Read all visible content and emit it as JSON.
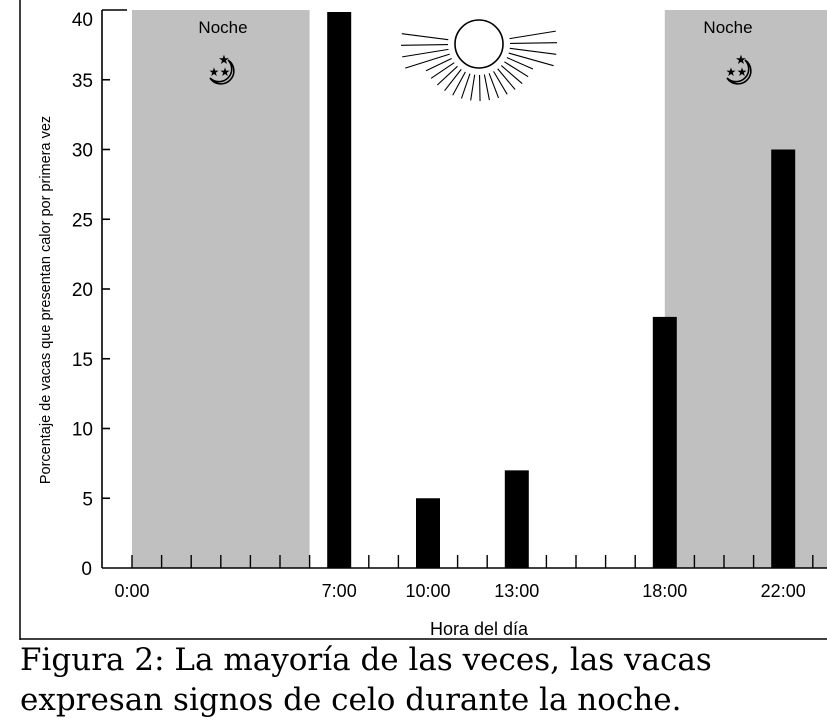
{
  "chart_data": {
    "type": "bar",
    "x": [
      7,
      10,
      13,
      18,
      22
    ],
    "values": [
      40,
      5,
      7,
      18,
      30
    ],
    "xlabel": "Hora del día",
    "ylabel": "Porcentaje de vacas que presentan calor por primera vez",
    "xlim": [
      0,
      24
    ],
    "ylim": [
      0,
      40
    ],
    "yticks": [
      0,
      5,
      10,
      15,
      20,
      25,
      30,
      35,
      40
    ],
    "xtick_labels": [
      {
        "x": 0,
        "label": "0:00"
      },
      {
        "x": 7,
        "label": "7:00"
      },
      {
        "x": 10,
        "label": "10:00"
      },
      {
        "x": 13,
        "label": "13:00"
      },
      {
        "x": 18,
        "label": "18:00"
      },
      {
        "x": 22,
        "label": "22:00"
      }
    ],
    "minor_tick_step_hours": 1,
    "night_bands": [
      {
        "from": 0,
        "to": 6,
        "label": "Noche"
      },
      {
        "from": 18,
        "to": 24,
        "label": "Noche"
      }
    ],
    "colors": {
      "night_band": "#c0c0c0",
      "bar": "#000000",
      "background": "#ffffff"
    },
    "grid": false
  },
  "caption": {
    "line1": "Figura 2:  La mayoría de las veces, las vacas",
    "line2": "expresan signos de celo durante la noche."
  },
  "icons": {
    "night": "moon-stars-icon",
    "day": "sun-icon"
  }
}
